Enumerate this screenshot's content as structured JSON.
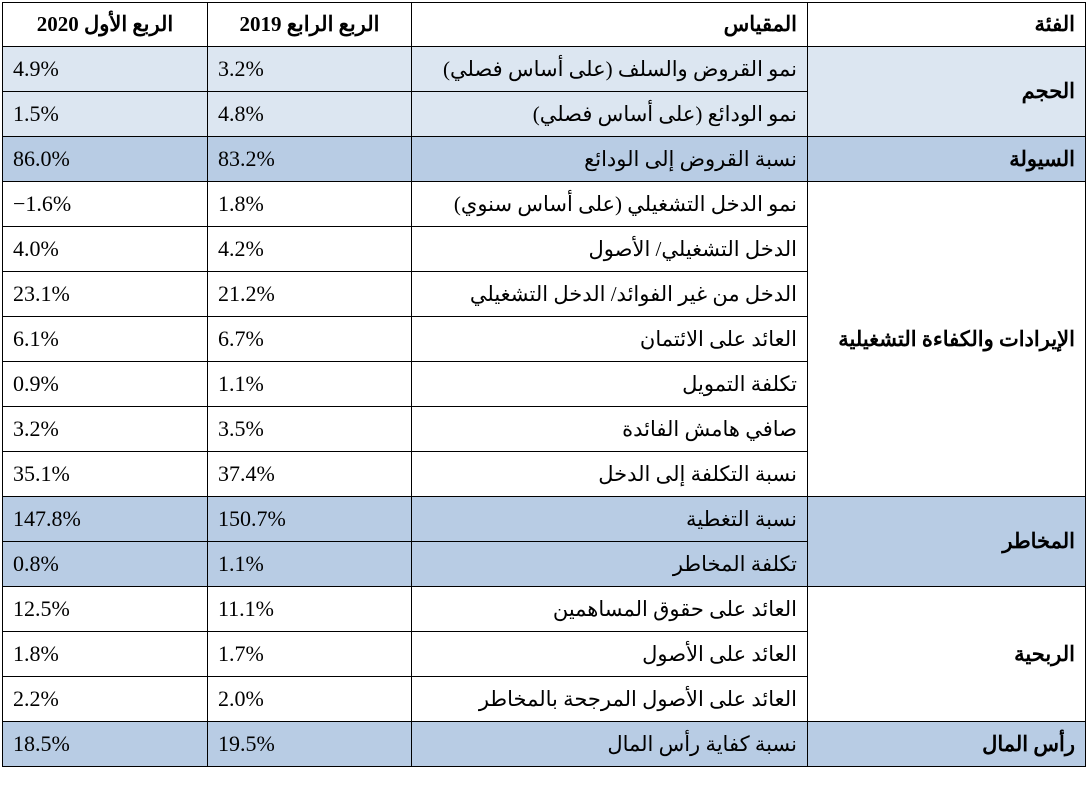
{
  "headers": {
    "category": "الفئة",
    "metric": "المقياس",
    "q4_2019": "الربع الرابع 2019",
    "q1_2020": "الربع الأول 2020"
  },
  "groups": [
    {
      "category": "الحجم",
      "shade": "light",
      "rows": [
        {
          "metric": "نمو القروض والسلف (على أساس فصلي)",
          "q4_2019": "3.2%",
          "q1_2020": "4.9%"
        },
        {
          "metric": "نمو الودائع (على أساس فصلي)",
          "q4_2019": "4.8%",
          "q1_2020": "1.5%"
        }
      ]
    },
    {
      "category": "السيولة",
      "shade": "dark",
      "rows": [
        {
          "metric": "نسبة القروض إلى الودائع",
          "q4_2019": "83.2%",
          "q1_2020": "86.0%"
        }
      ]
    },
    {
      "category": "الإيرادات والكفاءة التشغيلية",
      "shade": "light",
      "rows": [
        {
          "metric": "نمو الدخل التشغيلي (على أساس سنوي)",
          "q4_2019": "1.8%",
          "q1_2020": "−1.6%"
        },
        {
          "metric": "الدخل التشغيلي/ الأصول",
          "q4_2019": "4.2%",
          "q1_2020": "4.0%"
        },
        {
          "metric": "الدخل من غير الفوائد/ الدخل التشغيلي",
          "q4_2019": "21.2%",
          "q1_2020": "23.1%"
        },
        {
          "metric": "العائد على الائتمان",
          "q4_2019": "6.7%",
          "q1_2020": "6.1%"
        },
        {
          "metric": "تكلفة التمويل",
          "q4_2019": "1.1%",
          "q1_2020": "0.9%"
        },
        {
          "metric": "صافي هامش الفائدة",
          "q4_2019": "3.5%",
          "q1_2020": "3.2%"
        },
        {
          "metric": "نسبة التكلفة إلى الدخل",
          "q4_2019": "37.4%",
          "q1_2020": "35.1%"
        }
      ]
    },
    {
      "category": "المخاطر",
      "shade": "dark",
      "rows": [
        {
          "metric": "نسبة التغطية",
          "q4_2019": "150.7%",
          "q1_2020": "147.8%"
        },
        {
          "metric": "تكلفة المخاطر",
          "q4_2019": "1.1%",
          "q1_2020": "0.8%"
        }
      ]
    },
    {
      "category": "الربحية",
      "shade": "white",
      "rows": [
        {
          "metric": "العائد على حقوق المساهمين",
          "q4_2019": "11.1%",
          "q1_2020": "12.5%"
        },
        {
          "metric": "العائد على الأصول",
          "q4_2019": "1.7%",
          "q1_2020": "1.8%"
        },
        {
          "metric": "العائد على الأصول المرجحة بالمخاطر",
          "q4_2019": "2.0%",
          "q1_2020": "2.2%"
        }
      ]
    },
    {
      "category": "رأس المال",
      "shade": "dark",
      "rows": [
        {
          "metric": "نسبة كفاية رأس المال",
          "q4_2019": "19.5%",
          "q1_2020": "18.5%"
        }
      ]
    }
  ],
  "colors": {
    "light": "#dce6f1",
    "dark": "#b8cce4",
    "white": "#ffffff"
  }
}
